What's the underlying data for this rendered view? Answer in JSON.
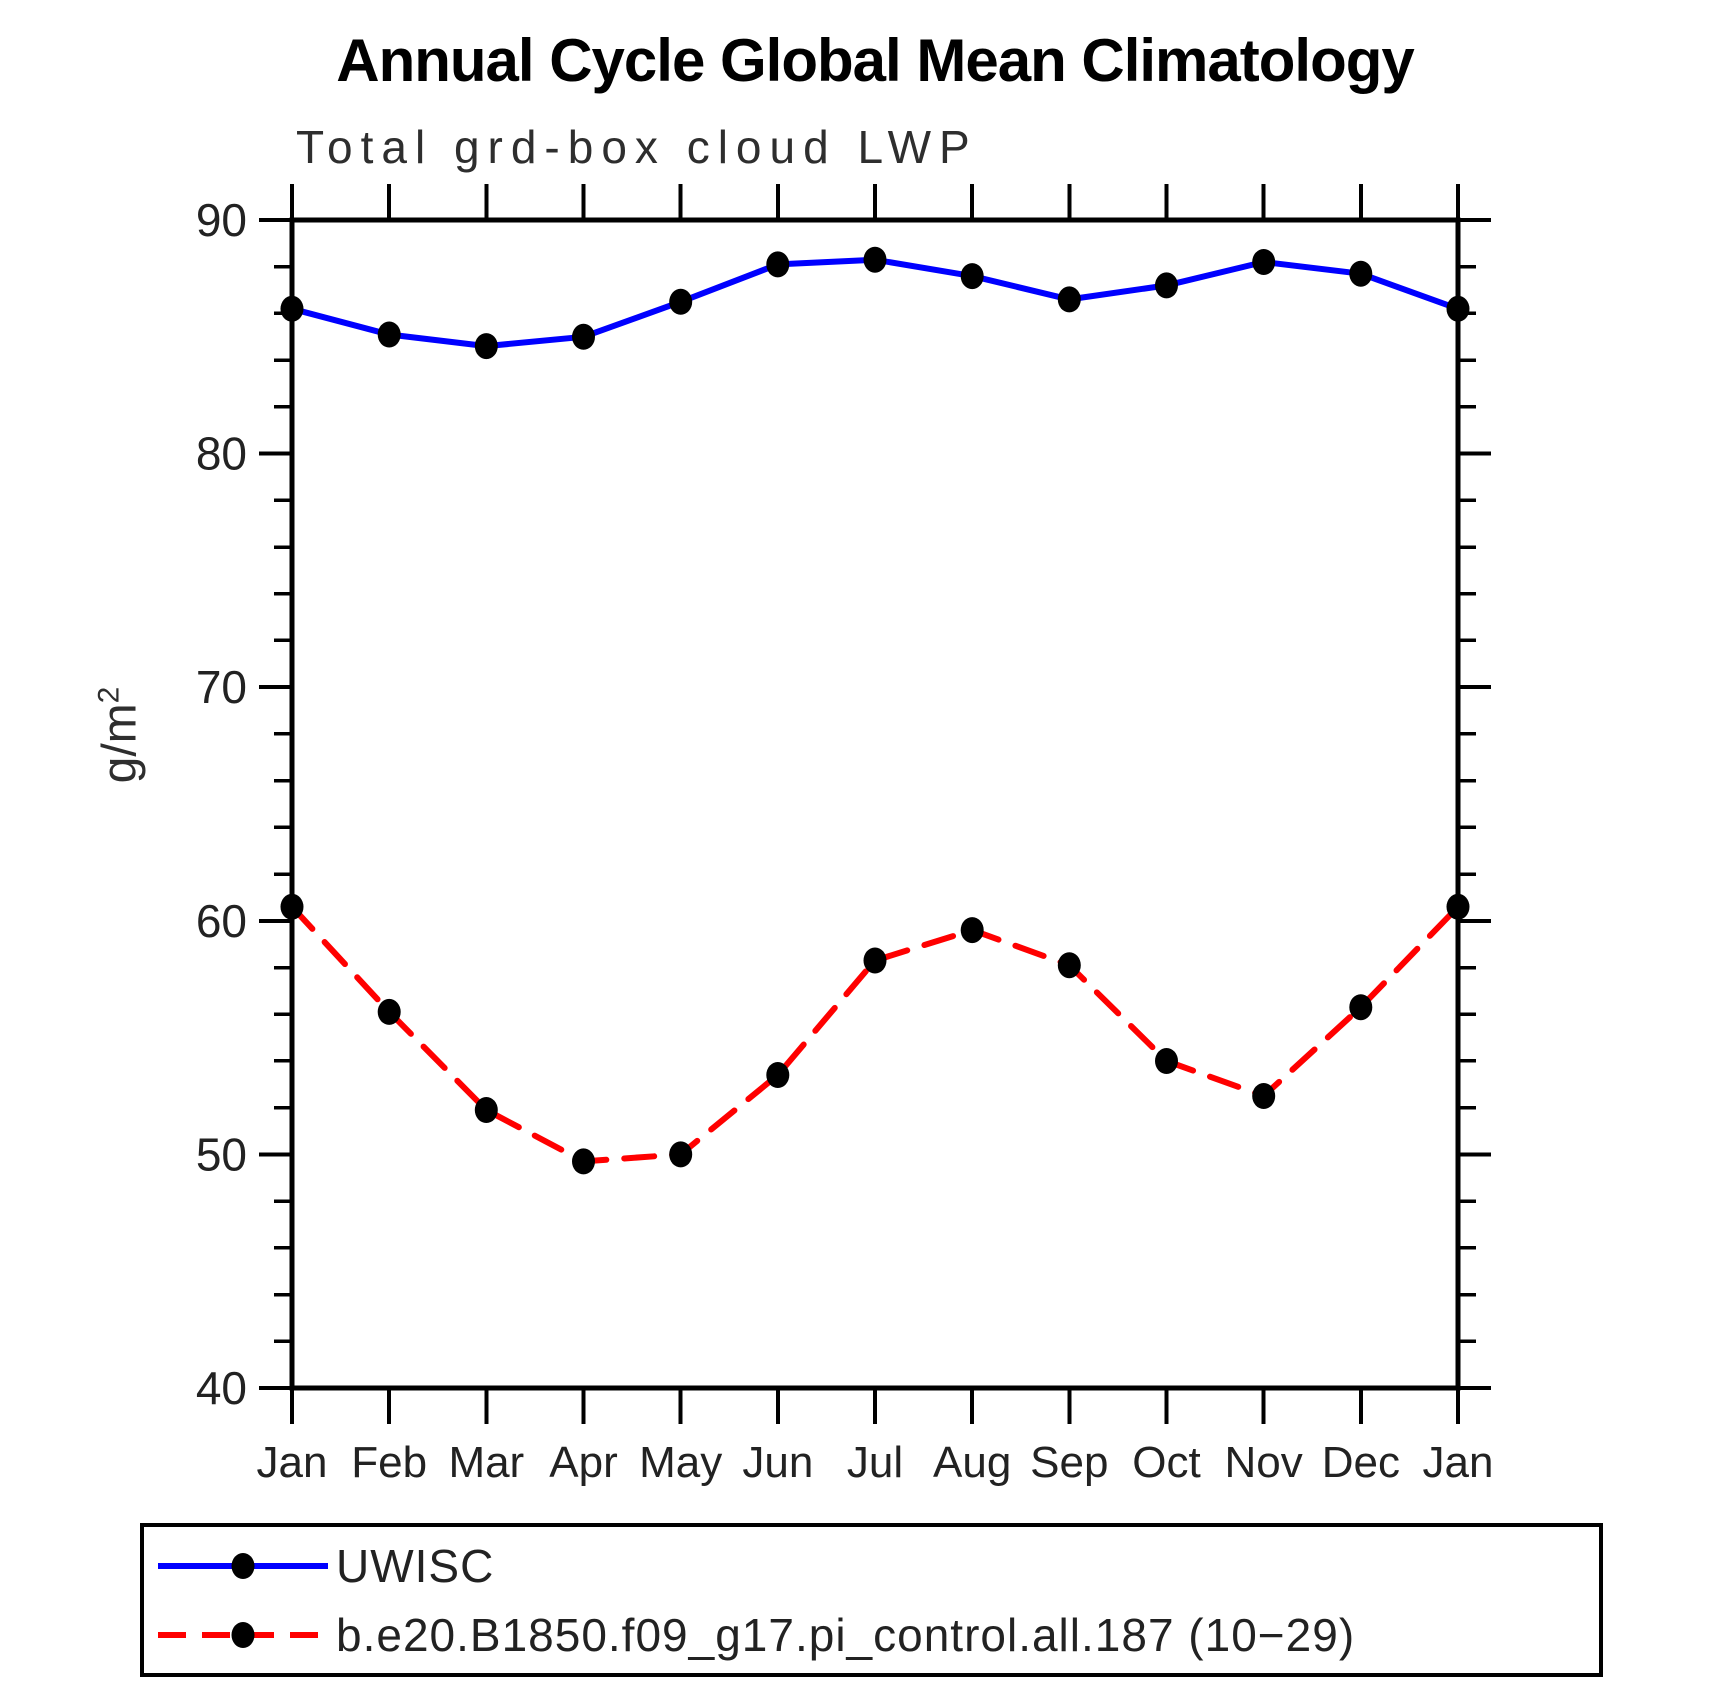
{
  "chart_data": {
    "type": "line",
    "title": "Annual Cycle Global Mean Climatology",
    "subtitle": "Total grd-box cloud LWP",
    "xlabel": "",
    "ylabel": "g/m²",
    "ylim": [
      40,
      90
    ],
    "y_major_ticks": [
      90,
      80,
      70,
      60,
      50,
      40
    ],
    "y_minor_step": 2,
    "grid": false,
    "legend_position": "bottom-left-box",
    "categories": [
      "Jan",
      "Feb",
      "Mar",
      "Apr",
      "May",
      "Jun",
      "Jul",
      "Aug",
      "Sep",
      "Oct",
      "Nov",
      "Dec",
      "Jan"
    ],
    "series": [
      {
        "name": "UWISC",
        "style": "solid",
        "color": "#0000ff",
        "marker_color": "#000000",
        "values": [
          86.2,
          85.1,
          84.6,
          85.0,
          86.5,
          88.1,
          88.3,
          87.6,
          86.6,
          87.2,
          88.2,
          87.7,
          86.2
        ]
      },
      {
        "name": "b.e20.B1850.f09_g17.pi_control.all.187 (10−29)",
        "style": "dashed",
        "color": "#ff0000",
        "marker_color": "#000000",
        "values": [
          60.6,
          56.1,
          51.9,
          49.7,
          50.0,
          53.4,
          58.3,
          59.6,
          58.1,
          54.0,
          52.5,
          56.3,
          60.6
        ]
      }
    ]
  },
  "colors": {
    "axis": "#000000",
    "text": "#222222"
  }
}
